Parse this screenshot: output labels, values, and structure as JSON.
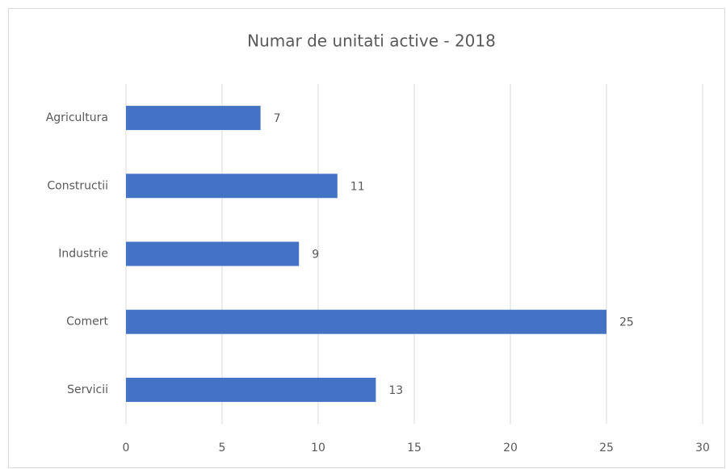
{
  "chart_data": {
    "type": "bar",
    "orientation": "horizontal",
    "title": "Numar de unitati active - 2018",
    "categories": [
      "Agricultura",
      "Constructii",
      "Industrie",
      "Comert",
      "Servicii"
    ],
    "values": [
      7,
      11,
      9,
      25,
      13
    ],
    "color": "#4472c4",
    "xlim": [
      0,
      30
    ],
    "xticks": [
      0,
      5,
      10,
      15,
      20,
      25,
      30
    ],
    "grid": true
  }
}
